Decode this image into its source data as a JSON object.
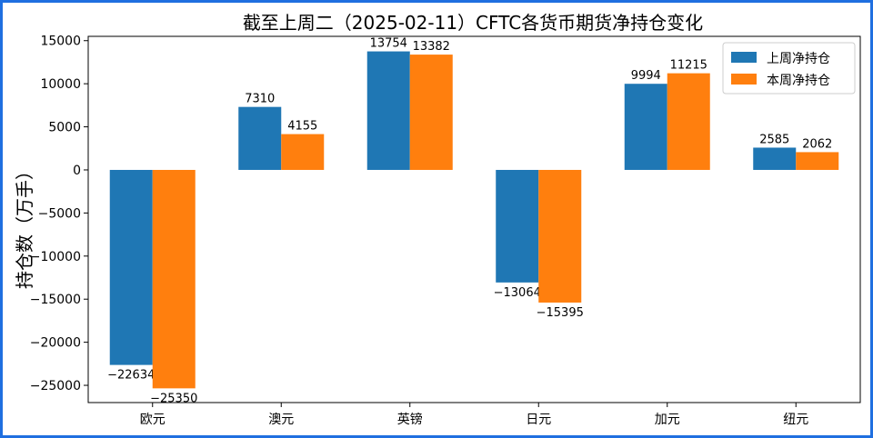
{
  "chart_data": {
    "type": "bar",
    "title": "截至上周二（2025-02-11）CFTC各货币期货净持仓变化",
    "xlabel": "",
    "ylabel": "持仓数（万手）",
    "categories": [
      "欧元",
      "澳元",
      "英镑",
      "日元",
      "加元",
      "纽元"
    ],
    "series": [
      {
        "name": "上周净持仓",
        "color": "#1f77b4",
        "values": [
          -22634,
          7310,
          13754,
          -13064,
          9994,
          2585
        ]
      },
      {
        "name": "本周净持仓",
        "color": "#ff7f0e",
        "values": [
          -25350,
          4155,
          13382,
          -15395,
          11215,
          2062
        ]
      }
    ],
    "ylim": [
      -27000,
      15500
    ],
    "yticks": [
      15000,
      10000,
      5000,
      0,
      -5000,
      -10000,
      -15000,
      -20000,
      -25000
    ],
    "ytick_labels": [
      "15000",
      "10000",
      "5000",
      "0",
      "−5000",
      "−10000",
      "−15000",
      "−20000",
      "−25000"
    ],
    "grid": false,
    "legend_position": "top-right"
  }
}
